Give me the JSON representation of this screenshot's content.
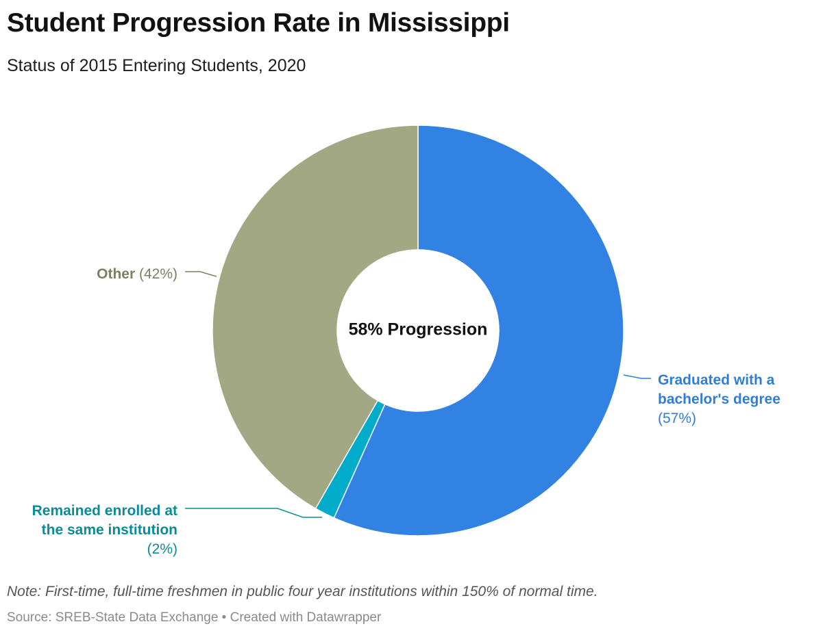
{
  "header": {
    "title": "Student Progression Rate in Mississippi",
    "subtitle": "Status of 2015 Entering Students, 2020"
  },
  "chart_data": {
    "type": "pie",
    "variant": "donut",
    "center_label": "58% Progression",
    "slices": [
      {
        "label_lines": [
          "Graduated with a",
          "bachelor's degree"
        ],
        "pct_text": "(57%)",
        "value": 56.7,
        "color": "#3182e2"
      },
      {
        "label_lines": [
          "Remained enrolled at",
          "the same institution"
        ],
        "pct_text": "(2%)",
        "value": 1.6,
        "color": "#00acc9"
      },
      {
        "label_lines": [
          "Other"
        ],
        "pct_text": "(42%)",
        "value": 41.7,
        "color": "#a2a883"
      }
    ],
    "label_colors": [
      "#2f7dd6",
      "#0a8c98",
      "#7c8060"
    ]
  },
  "footer": {
    "note": "Note: First-time, full-time freshmen in public four year institutions within 150% of normal time.",
    "source": "Source: SREB-State Data Exchange • Created with Datawrapper"
  }
}
